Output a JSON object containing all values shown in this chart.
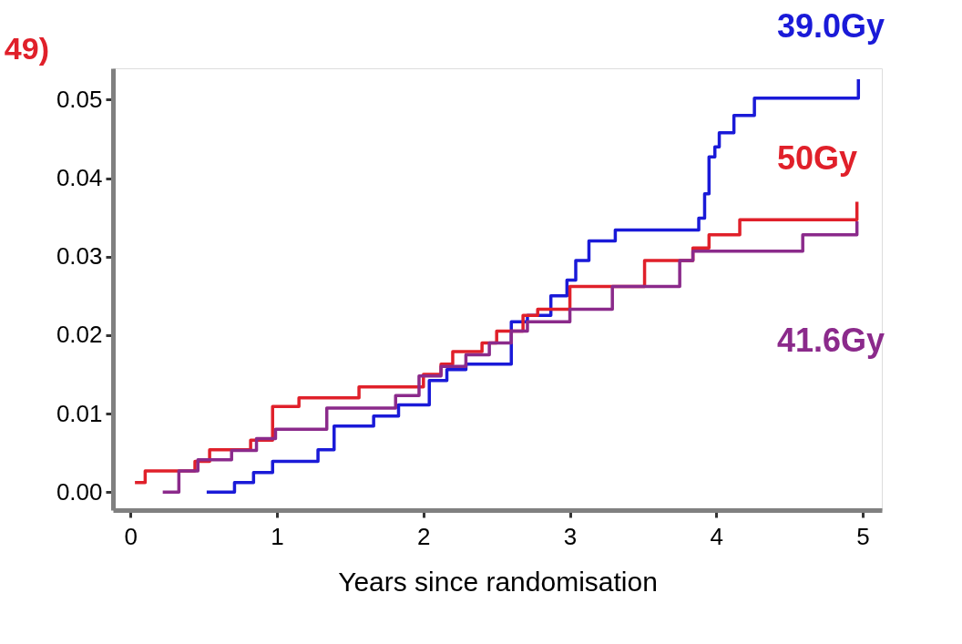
{
  "chart_data": {
    "type": "step",
    "title": "49)",
    "xlabel": "Years since randomisation",
    "xlim": [
      -0.12,
      5.13
    ],
    "ylim": [
      -0.0023,
      0.054
    ],
    "xticks": [
      0,
      1,
      2,
      3,
      4,
      5
    ],
    "yticks": [
      {
        "value": 0,
        "label": "0.00"
      },
      0.01,
      0.02,
      0.03,
      0.04,
      0.05
    ],
    "grid": false,
    "marker": "none",
    "line_style": "solid",
    "series": [
      {
        "name": "39.0Gy",
        "color": "#1a1ad8",
        "x": [
          0.52,
          0.71,
          0.84,
          0.97,
          1.28,
          1.39,
          1.66,
          1.83,
          2.04,
          2.16,
          2.29,
          2.6,
          2.71,
          2.87,
          2.98,
          3.04,
          3.13,
          3.31,
          3.88,
          3.92,
          3.95,
          3.99,
          4.02,
          4.12,
          4.26,
          4.72,
          4.97,
          4.97
        ],
        "values": [
          0.0,
          0.0012,
          0.0025,
          0.0039,
          0.0054,
          0.0084,
          0.0097,
          0.0111,
          0.0142,
          0.0156,
          0.0163,
          0.0217,
          0.0225,
          0.025,
          0.027,
          0.0295,
          0.032,
          0.0334,
          0.0349,
          0.038,
          0.0427,
          0.044,
          0.0458,
          0.048,
          0.0502,
          0.0502,
          0.0502,
          0.0526
        ]
      },
      {
        "name": "50Gy",
        "color": "#e0202a",
        "x": [
          0.03,
          0.1,
          0.44,
          0.54,
          0.82,
          0.97,
          1.15,
          1.56,
          2.0,
          2.12,
          2.2,
          2.4,
          2.5,
          2.68,
          2.78,
          3.0,
          3.51,
          3.84,
          3.95,
          4.16,
          4.96,
          4.96
        ],
        "values": [
          0.0012,
          0.0027,
          0.0039,
          0.0054,
          0.0066,
          0.0109,
          0.012,
          0.0134,
          0.015,
          0.0163,
          0.0179,
          0.019,
          0.0205,
          0.0225,
          0.0233,
          0.0262,
          0.0295,
          0.0311,
          0.0328,
          0.0347,
          0.0347,
          0.037
        ]
      },
      {
        "name": "41.6Gy",
        "color": "#8b2a8b",
        "x": [
          0.22,
          0.33,
          0.46,
          0.69,
          0.86,
          0.99,
          1.34,
          1.81,
          1.97,
          2.12,
          2.29,
          2.45,
          2.6,
          2.71,
          3.0,
          3.29,
          3.75,
          3.84,
          4.59,
          4.96,
          4.96
        ],
        "values": [
          0.0,
          0.0027,
          0.0041,
          0.0053,
          0.0068,
          0.008,
          0.0107,
          0.0123,
          0.0148,
          0.016,
          0.0175,
          0.019,
          0.0205,
          0.0217,
          0.0233,
          0.0262,
          0.0295,
          0.0307,
          0.0328,
          0.0328,
          0.0345
        ]
      }
    ]
  }
}
